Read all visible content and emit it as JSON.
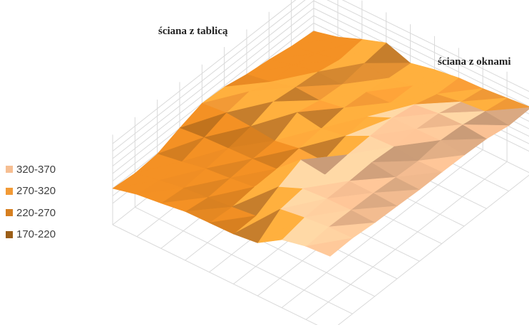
{
  "chart_data": {
    "type": "surface",
    "annotations": [
      "ściana z tablicą",
      "ściana z oknami"
    ],
    "legend": [
      {
        "label": "320-370",
        "color": "#F6BE92"
      },
      {
        "label": "270-320",
        "color": "#F29A36"
      },
      {
        "label": "220-270",
        "color": "#D67F20"
      },
      {
        "label": "170-220",
        "color": "#9B5E17"
      }
    ],
    "bands": [
      [
        170,
        220
      ],
      [
        220,
        270
      ],
      [
        270,
        320
      ],
      [
        320,
        370
      ]
    ],
    "zlim": [
      170,
      370
    ],
    "grid": true,
    "legend_position": "left",
    "z": [
      [
        220,
        240,
        250,
        262,
        264,
        266,
        276,
        326,
        344,
        350
      ],
      [
        212,
        228,
        242,
        250,
        258,
        268,
        330,
        342,
        350,
        352
      ],
      [
        218,
        232,
        248,
        256,
        266,
        306,
        340,
        346,
        348,
        345
      ],
      [
        246,
        254,
        258,
        262,
        268,
        338,
        328,
        346,
        346,
        342
      ],
      [
        270,
        278,
        272,
        264,
        278,
        276,
        336,
        350,
        340,
        338
      ],
      [
        266,
        290,
        296,
        300,
        286,
        300,
        340,
        344,
        336,
        338
      ],
      [
        250,
        264,
        286,
        282,
        296,
        306,
        342,
        344,
        346,
        336
      ],
      [
        240,
        262,
        278,
        276,
        290,
        294,
        328,
        338,
        340,
        332
      ],
      [
        226,
        242,
        262,
        288,
        278,
        292,
        304,
        318,
        326,
        318
      ],
      [
        218,
        238,
        270,
        298,
        270,
        288,
        300,
        304,
        312,
        320
      ]
    ]
  }
}
